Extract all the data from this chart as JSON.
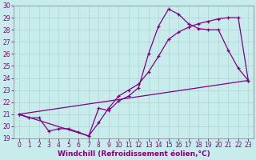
{
  "xlabel": "Windchill (Refroidissement éolien,°C)",
  "background_color": "#c8ecec",
  "line_color": "#800080",
  "xlim": [
    -0.5,
    23.5
  ],
  "ylim": [
    19,
    30
  ],
  "yticks": [
    19,
    20,
    21,
    22,
    23,
    24,
    25,
    26,
    27,
    28,
    29,
    30
  ],
  "xticks": [
    0,
    1,
    2,
    3,
    4,
    5,
    6,
    7,
    8,
    9,
    10,
    11,
    12,
    13,
    14,
    15,
    16,
    17,
    18,
    19,
    20,
    21,
    22,
    23
  ],
  "line1_x": [
    0,
    1,
    2,
    3,
    4,
    5,
    6,
    7,
    8,
    9,
    10,
    11,
    12,
    13,
    14,
    15,
    16,
    17,
    18,
    19,
    20,
    21,
    22,
    23
  ],
  "line1_y": [
    21,
    20.7,
    20.7,
    19.6,
    19.8,
    19.8,
    19.5,
    19.2,
    21.5,
    21.3,
    22.1,
    22.5,
    23.2,
    26.0,
    28.3,
    29.7,
    29.3,
    28.5,
    28.1,
    28.0,
    28.0,
    26.3,
    24.8,
    23.8
  ],
  "line2_x": [
    0,
    7,
    8,
    9,
    10,
    11,
    12,
    13,
    14,
    15,
    16,
    17,
    18,
    19,
    20,
    21,
    22,
    23
  ],
  "line2_y": [
    21,
    19.2,
    20.3,
    21.5,
    22.5,
    23.0,
    23.5,
    24.5,
    25.8,
    27.2,
    27.8,
    28.2,
    28.5,
    28.7,
    28.9,
    29.0,
    29.0,
    23.8
  ],
  "line3_x": [
    0,
    23
  ],
  "line3_y": [
    21,
    23.8
  ],
  "grid_color": "#aad4d4",
  "xlabel_fontsize": 6.5,
  "tick_fontsize": 5.5,
  "linewidth": 0.9,
  "markersize": 3.5
}
